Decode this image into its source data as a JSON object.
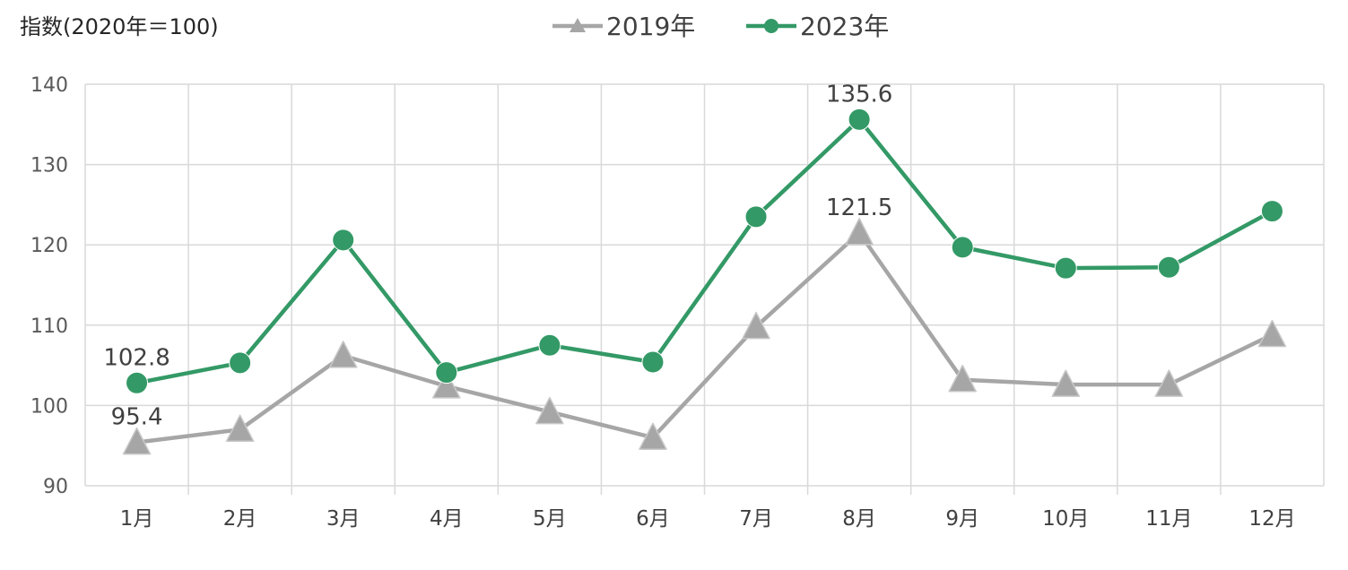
{
  "chart_data": {
    "type": "line",
    "title": "",
    "ylabel": "指数(2020年＝100)",
    "xlabel": "",
    "categories": [
      "1月",
      "2月",
      "3月",
      "4月",
      "5月",
      "6月",
      "7月",
      "8月",
      "9月",
      "10月",
      "11月",
      "12月"
    ],
    "ylim": [
      90,
      140
    ],
    "yticks": [
      90,
      100,
      110,
      120,
      130,
      140
    ],
    "grid": true,
    "legend_position": "top",
    "series": [
      {
        "name": "2019年",
        "color": "#a6a6a6",
        "marker": "triangle",
        "values": [
          95.4,
          97.0,
          106.2,
          102.4,
          99.2,
          96.0,
          109.8,
          121.5,
          103.2,
          102.6,
          102.6,
          108.8
        ],
        "labels": {
          "0": "95.4",
          "7": "121.5"
        }
      },
      {
        "name": "2023年",
        "color": "#339966",
        "marker": "circle",
        "values": [
          102.8,
          105.3,
          120.6,
          104.1,
          107.5,
          105.4,
          123.5,
          135.6,
          119.7,
          117.1,
          117.2,
          124.2
        ],
        "labels": {
          "0": "102.8",
          "7": "135.6"
        }
      }
    ]
  }
}
